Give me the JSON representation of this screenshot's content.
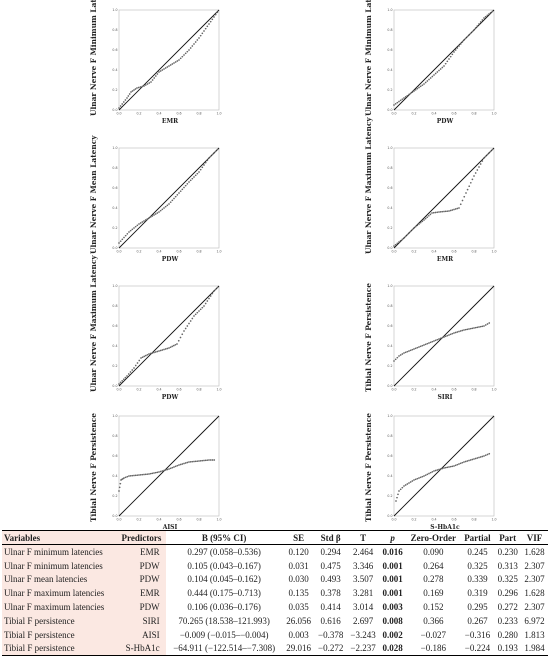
{
  "chart_data": [
    {
      "type": "scatter",
      "ylabel": "Ulnar Nerve F Minimum Latency",
      "xlabel": "EMR",
      "xlim": [
        0,
        1
      ],
      "ylim": [
        0,
        1
      ],
      "xticks": [
        "0.0",
        "0.2",
        "0.4",
        "0.6",
        "0.8",
        "1.0"
      ],
      "yticks": [
        "0.0",
        "0.2",
        "0.4",
        "0.6",
        "0.8",
        "1.0"
      ],
      "reference_line": [
        [
          0,
          0
        ],
        [
          1,
          1
        ]
      ],
      "curve": [
        [
          0,
          0.02
        ],
        [
          0.08,
          0.12
        ],
        [
          0.12,
          0.18
        ],
        [
          0.18,
          0.22
        ],
        [
          0.25,
          0.24
        ],
        [
          0.32,
          0.28
        ],
        [
          0.4,
          0.38
        ],
        [
          0.5,
          0.44
        ],
        [
          0.6,
          0.5
        ],
        [
          0.7,
          0.6
        ],
        [
          0.8,
          0.72
        ],
        [
          0.9,
          0.86
        ],
        [
          1,
          1
        ]
      ]
    },
    {
      "type": "scatter",
      "ylabel": "Ulnar Nerve F Minimum Latency",
      "xlabel": "PDW",
      "xlim": [
        0,
        1
      ],
      "ylim": [
        0,
        1
      ],
      "xticks": [
        "0.0",
        "0.2",
        "0.4",
        "0.6",
        "0.8",
        "1.0"
      ],
      "yticks": [
        "0.0",
        "0.2",
        "0.4",
        "0.6",
        "0.8",
        "1.0"
      ],
      "reference_line": [
        [
          0,
          0
        ],
        [
          1,
          1
        ]
      ],
      "curve": [
        [
          0,
          0.05
        ],
        [
          0.1,
          0.12
        ],
        [
          0.2,
          0.19
        ],
        [
          0.3,
          0.26
        ],
        [
          0.4,
          0.35
        ],
        [
          0.5,
          0.44
        ],
        [
          0.6,
          0.58
        ],
        [
          0.7,
          0.7
        ],
        [
          0.8,
          0.8
        ],
        [
          0.9,
          0.92
        ],
        [
          1,
          1
        ]
      ]
    },
    {
      "type": "scatter",
      "ylabel": "Ulnar Nerve F Mean Latency",
      "xlabel": "PDW",
      "xlim": [
        0,
        1
      ],
      "ylim": [
        0,
        1
      ],
      "xticks": [
        "0.0",
        "0.2",
        "0.4",
        "0.6",
        "0.8",
        "1.0"
      ],
      "yticks": [
        "0.0",
        "0.2",
        "0.4",
        "0.6",
        "0.8",
        "1.0"
      ],
      "reference_line": [
        [
          0,
          0
        ],
        [
          1,
          1
        ]
      ],
      "curve": [
        [
          0,
          0.05
        ],
        [
          0.1,
          0.16
        ],
        [
          0.2,
          0.24
        ],
        [
          0.3,
          0.3
        ],
        [
          0.4,
          0.36
        ],
        [
          0.5,
          0.44
        ],
        [
          0.6,
          0.55
        ],
        [
          0.7,
          0.66
        ],
        [
          0.8,
          0.76
        ],
        [
          0.9,
          0.9
        ],
        [
          1,
          1
        ]
      ]
    },
    {
      "type": "scatter",
      "ylabel": "Ulnar Nerve F Maximum Latency",
      "xlabel": "EMR",
      "xlim": [
        0,
        1
      ],
      "ylim": [
        0,
        1
      ],
      "xticks": [
        "0.0",
        "0.2",
        "0.4",
        "0.6",
        "0.8",
        "1.0"
      ],
      "yticks": [
        "0.0",
        "0.2",
        "0.4",
        "0.6",
        "0.8",
        "1.0"
      ],
      "reference_line": [
        [
          0,
          0
        ],
        [
          1,
          1
        ]
      ],
      "curve": [
        [
          0,
          0.02
        ],
        [
          0.1,
          0.1
        ],
        [
          0.2,
          0.2
        ],
        [
          0.3,
          0.28
        ],
        [
          0.38,
          0.35
        ],
        [
          0.45,
          0.36
        ],
        [
          0.55,
          0.37
        ],
        [
          0.65,
          0.4
        ],
        [
          0.72,
          0.55
        ],
        [
          0.8,
          0.72
        ],
        [
          0.9,
          0.9
        ],
        [
          1,
          1
        ]
      ]
    },
    {
      "type": "scatter",
      "ylabel": "Ulnar Nerve F Maximum Latency",
      "xlabel": "PDW",
      "xlim": [
        0,
        1
      ],
      "ylim": [
        0,
        1
      ],
      "xticks": [
        "0.0",
        "0.2",
        "0.4",
        "0.6",
        "0.8",
        "1.0"
      ],
      "yticks": [
        "0.0",
        "0.2",
        "0.4",
        "0.6",
        "0.8",
        "1.0"
      ],
      "reference_line": [
        [
          0,
          0
        ],
        [
          1,
          1
        ]
      ],
      "curve": [
        [
          0,
          0.02
        ],
        [
          0.08,
          0.1
        ],
        [
          0.15,
          0.18
        ],
        [
          0.22,
          0.28
        ],
        [
          0.3,
          0.32
        ],
        [
          0.4,
          0.35
        ],
        [
          0.5,
          0.38
        ],
        [
          0.58,
          0.42
        ],
        [
          0.65,
          0.55
        ],
        [
          0.75,
          0.7
        ],
        [
          0.85,
          0.8
        ],
        [
          0.95,
          0.95
        ],
        [
          1,
          1
        ]
      ]
    },
    {
      "type": "scatter",
      "ylabel": "Tibial Nerve F Persistence",
      "xlabel": "SIRI",
      "xlim": [
        0,
        1
      ],
      "ylim": [
        0,
        1
      ],
      "xticks": [
        "0.0",
        "0.2",
        "0.4",
        "0.6",
        "0.8",
        "1.0"
      ],
      "yticks": [
        "0.0",
        "0.2",
        "0.4",
        "0.6",
        "0.8",
        "1.0"
      ],
      "reference_line": [
        [
          0,
          0
        ],
        [
          1,
          1
        ]
      ],
      "curve": [
        [
          0,
          0.25
        ],
        [
          0.05,
          0.3
        ],
        [
          0.1,
          0.33
        ],
        [
          0.2,
          0.37
        ],
        [
          0.3,
          0.41
        ],
        [
          0.4,
          0.45
        ],
        [
          0.5,
          0.49
        ],
        [
          0.6,
          0.53
        ],
        [
          0.7,
          0.56
        ],
        [
          0.8,
          0.58
        ],
        [
          0.9,
          0.6
        ],
        [
          0.97,
          0.64
        ]
      ]
    },
    {
      "type": "scatter",
      "ylabel": "Tibial Nerve F Persistence",
      "xlabel": "AISI",
      "xlim": [
        0,
        1
      ],
      "ylim": [
        0,
        1
      ],
      "xticks": [
        "0.0",
        "0.2",
        "0.4",
        "0.6",
        "0.8",
        "1.0"
      ],
      "yticks": [
        "0.0",
        "0.2",
        "0.4",
        "0.6",
        "0.8",
        "1.0"
      ],
      "reference_line": [
        [
          0,
          0
        ],
        [
          1,
          1
        ]
      ],
      "curve": [
        [
          0,
          0.25
        ],
        [
          0.02,
          0.36
        ],
        [
          0.05,
          0.38
        ],
        [
          0.1,
          0.4
        ],
        [
          0.2,
          0.41
        ],
        [
          0.3,
          0.42
        ],
        [
          0.4,
          0.44
        ],
        [
          0.5,
          0.47
        ],
        [
          0.6,
          0.51
        ],
        [
          0.7,
          0.54
        ],
        [
          0.8,
          0.55
        ],
        [
          0.9,
          0.56
        ],
        [
          0.97,
          0.56
        ]
      ]
    },
    {
      "type": "scatter",
      "ylabel": "Tibial Nerve F Persistence",
      "xlabel": "S-HbA1c",
      "xlim": [
        0,
        1
      ],
      "ylim": [
        0,
        1
      ],
      "xticks": [
        "0.0",
        "0.2",
        "0.4",
        "0.6",
        "0.8",
        "1.0"
      ],
      "yticks": [
        "0.0",
        "0.2",
        "0.4",
        "0.6",
        "0.8",
        "1.0"
      ],
      "reference_line": [
        [
          0,
          0
        ],
        [
          1,
          1
        ]
      ],
      "curve": [
        [
          0.02,
          0.15
        ],
        [
          0.05,
          0.25
        ],
        [
          0.1,
          0.3
        ],
        [
          0.2,
          0.36
        ],
        [
          0.3,
          0.4
        ],
        [
          0.4,
          0.45
        ],
        [
          0.5,
          0.48
        ],
        [
          0.6,
          0.5
        ],
        [
          0.7,
          0.54
        ],
        [
          0.8,
          0.57
        ],
        [
          0.9,
          0.6
        ],
        [
          0.97,
          0.63
        ]
      ]
    }
  ],
  "table": {
    "headers": [
      "Variables",
      "Predictors",
      "B (95% CI)",
      "SE",
      "Std β",
      "T",
      "p",
      "Zero-Order",
      "Partial",
      "Part",
      "VIF"
    ],
    "rows": [
      [
        "Ulnar F minimum latencies",
        "EMR",
        "0.297 (0.058–0.536)",
        "0.120",
        "0.294",
        "2.464",
        "0.016",
        "0.090",
        "0.245",
        "0.230",
        "1.628"
      ],
      [
        "Ulnar F minimum latencies",
        "PDW",
        "0.105 (0.043–0.167)",
        "0.031",
        "0.475",
        "3.346",
        "0.001",
        "0.264",
        "0.325",
        "0.313",
        "2.307"
      ],
      [
        "Ulnar F mean latencies",
        "PDW",
        "0.104 (0.045–0.162)",
        "0.030",
        "0.493",
        "3.507",
        "0.001",
        "0.278",
        "0.339",
        "0.325",
        "2.307"
      ],
      [
        "Ulnar F maximum latencies",
        "EMR",
        "0.444 (0.175–0.713)",
        "0.135",
        "0.378",
        "3.281",
        "0.001",
        "0.169",
        "0.319",
        "0.296",
        "1.628"
      ],
      [
        "Ulnar F maximum latencies",
        "PDW",
        "0.106 (0.036–0.176)",
        "0.035",
        "0.414",
        "3.014",
        "0.003",
        "0.152",
        "0.295",
        "0.272",
        "2.307"
      ],
      [
        "Tibial F persistence",
        "SIRI",
        "70.265 (18.538–121.993)",
        "26.056",
        "0.616",
        "2.697",
        "0.008",
        "0.366",
        "0.267",
        "0.233",
        "6.972"
      ],
      [
        "Tibial F persistence",
        "AISI",
        "−0.009 (−0.015–−0.004)",
        "0.003",
        "−0.378",
        "−3.243",
        "0.002",
        "−0.027",
        "−0.316",
        "0.280",
        "1.813"
      ],
      [
        "Tibial F persistence",
        "S-HbA1c",
        "−64.911 (−122.514–−7.308)",
        "29.016",
        "−0.272",
        "−2.237",
        "0.028",
        "−0.186",
        "−0.224",
        "0.193",
        "1.984"
      ]
    ]
  }
}
